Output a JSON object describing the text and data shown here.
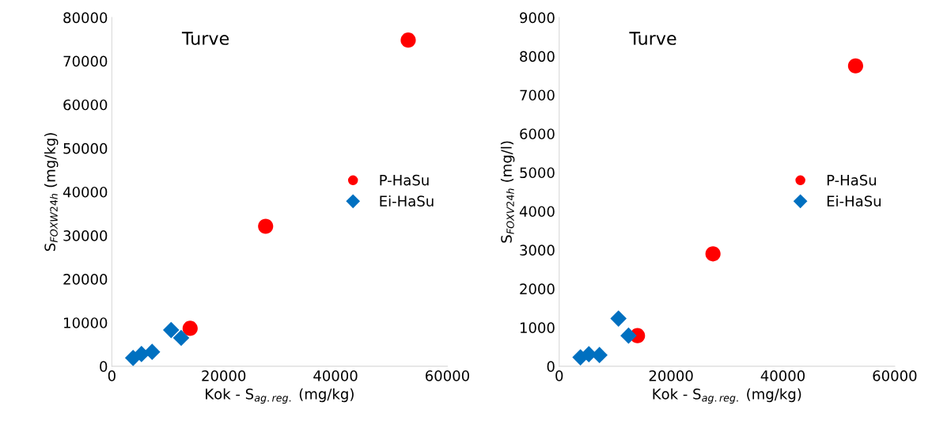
{
  "chart_data": [
    {
      "type": "scatter",
      "title": "Turve",
      "xlabel": "Kok - S$_{ag.reg.}$ (mg/kg)",
      "ylabel": "S$_{FOXW24h}$ (mg/kg)",
      "xlim": [
        0,
        60000
      ],
      "xticks": [
        0,
        20000,
        40000,
        60000
      ],
      "ylim": [
        0,
        80000
      ],
      "yticks": [
        0,
        10000,
        20000,
        30000,
        40000,
        50000,
        60000,
        70000,
        80000
      ],
      "grid": false,
      "legend": "right",
      "series": [
        {
          "name": "P-HaSu",
          "color": "#ff0000",
          "marker": "circle",
          "x": [
            14000,
            27500,
            53000
          ],
          "values": [
            8700,
            32100,
            74800
          ]
        },
        {
          "name": "Ei-HaSu",
          "color": "#0070c0",
          "marker": "diamond",
          "x": [
            3800,
            5300,
            7200,
            10600,
            12400
          ],
          "values": [
            1900,
            2800,
            3300,
            8300,
            6500
          ]
        }
      ]
    },
    {
      "type": "scatter",
      "title": "Turve",
      "xlabel": "Kok - S$_{ag.reg.}$ (mg/kg)",
      "ylabel": "S$_{FOXV24h}$ (mg/l)",
      "xlim": [
        0,
        60000
      ],
      "xticks": [
        0,
        20000,
        40000,
        60000
      ],
      "ylim": [
        0,
        9000
      ],
      "yticks": [
        0,
        1000,
        2000,
        3000,
        4000,
        5000,
        6000,
        7000,
        8000,
        9000
      ],
      "grid": false,
      "legend": "right",
      "series": [
        {
          "name": "P-HaSu",
          "color": "#ff0000",
          "marker": "circle",
          "x": [
            14000,
            27500,
            53000
          ],
          "values": [
            790,
            2900,
            7750
          ]
        },
        {
          "name": "Ei-HaSu",
          "color": "#0070c0",
          "marker": "diamond",
          "x": [
            3800,
            5300,
            7200,
            10600,
            12400
          ],
          "values": [
            230,
            310,
            290,
            1230,
            790
          ]
        }
      ]
    }
  ]
}
